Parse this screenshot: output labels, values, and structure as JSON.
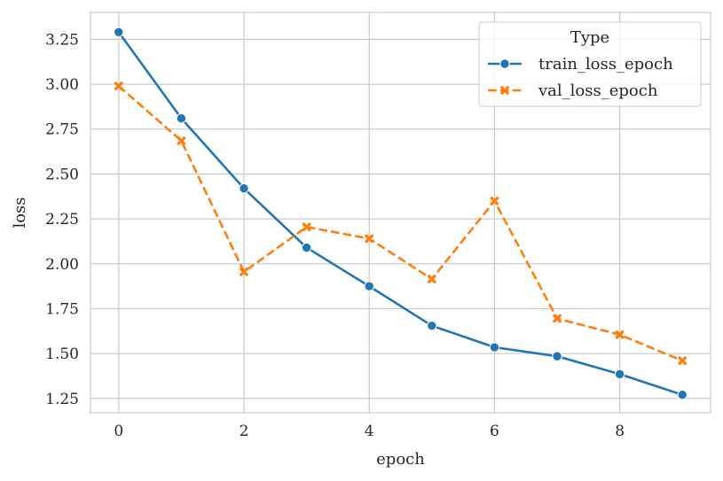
{
  "chart_data": {
    "type": "line",
    "xlabel": "epoch",
    "ylabel": "loss",
    "xlim": [
      -0.45,
      9.45
    ],
    "ylim": [
      1.17,
      3.4
    ],
    "xticks": [
      0,
      2,
      4,
      6,
      8
    ],
    "yticks": [
      1.25,
      1.5,
      1.75,
      2.0,
      2.25,
      2.5,
      2.75,
      3.0,
      3.25
    ],
    "ytick_labels": [
      "1.25",
      "1.50",
      "1.75",
      "2.00",
      "2.25",
      "2.50",
      "2.75",
      "3.00",
      "3.25"
    ],
    "grid": true,
    "legend": {
      "title": "Type",
      "position": "top-right"
    },
    "x": [
      0,
      1,
      2,
      3,
      4,
      5,
      6,
      7,
      8,
      9
    ],
    "series": [
      {
        "name": "train_loss_epoch",
        "color": "#1f77b4",
        "marker": "circle",
        "dash": "solid",
        "values": [
          3.29,
          2.81,
          2.42,
          2.09,
          1.875,
          1.655,
          1.535,
          1.485,
          1.385,
          1.27
        ]
      },
      {
        "name": "val_loss_epoch",
        "color": "#ff7f0e",
        "marker": "x",
        "dash": "dashed",
        "values": [
          2.99,
          2.685,
          1.955,
          2.205,
          2.14,
          1.915,
          2.35,
          1.695,
          1.605,
          1.46
        ]
      }
    ]
  }
}
